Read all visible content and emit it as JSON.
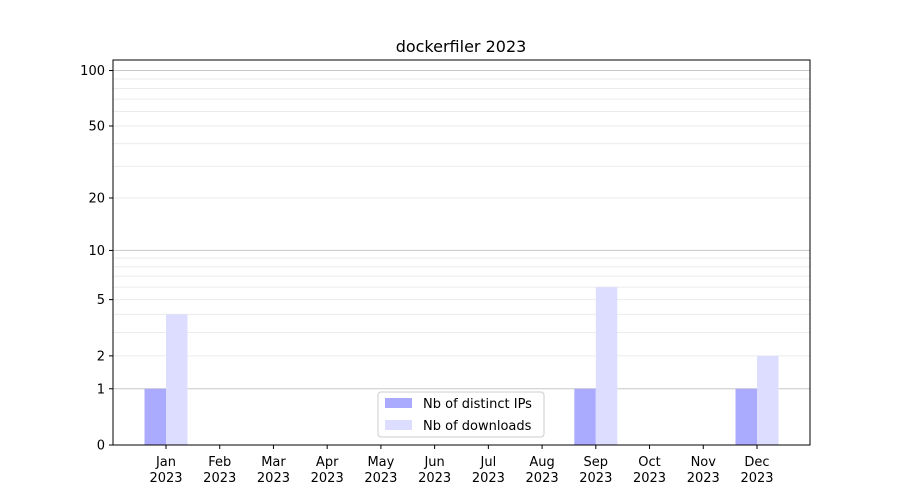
{
  "chart_data": {
    "type": "bar",
    "title": "dockerfiler 2023",
    "xlabel": "",
    "ylabel": "",
    "yscale": "symlog (log10(y+1))",
    "ylim": [
      0,
      114
    ],
    "yticks": [
      0,
      1,
      2,
      5,
      10,
      20,
      50,
      100
    ],
    "grid": true,
    "legend_position": "bottom-center",
    "categories": [
      "Jan\n2023",
      "Feb\n2023",
      "Mar\n2023",
      "Apr\n2023",
      "May\n2023",
      "Jun\n2023",
      "Jul\n2023",
      "Aug\n2023",
      "Sep\n2023",
      "Oct\n2023",
      "Nov\n2023",
      "Dec\n2023"
    ],
    "series": [
      {
        "name": "Nb of distinct IPs",
        "color": "#aaaaff",
        "values": [
          1,
          0,
          0,
          0,
          0,
          0,
          0,
          0,
          1,
          0,
          0,
          1
        ]
      },
      {
        "name": "Nb of downloads",
        "color": "#ddddff",
        "values": [
          4,
          0,
          0,
          0,
          0,
          0,
          0,
          0,
          6,
          0,
          0,
          2
        ]
      }
    ]
  }
}
